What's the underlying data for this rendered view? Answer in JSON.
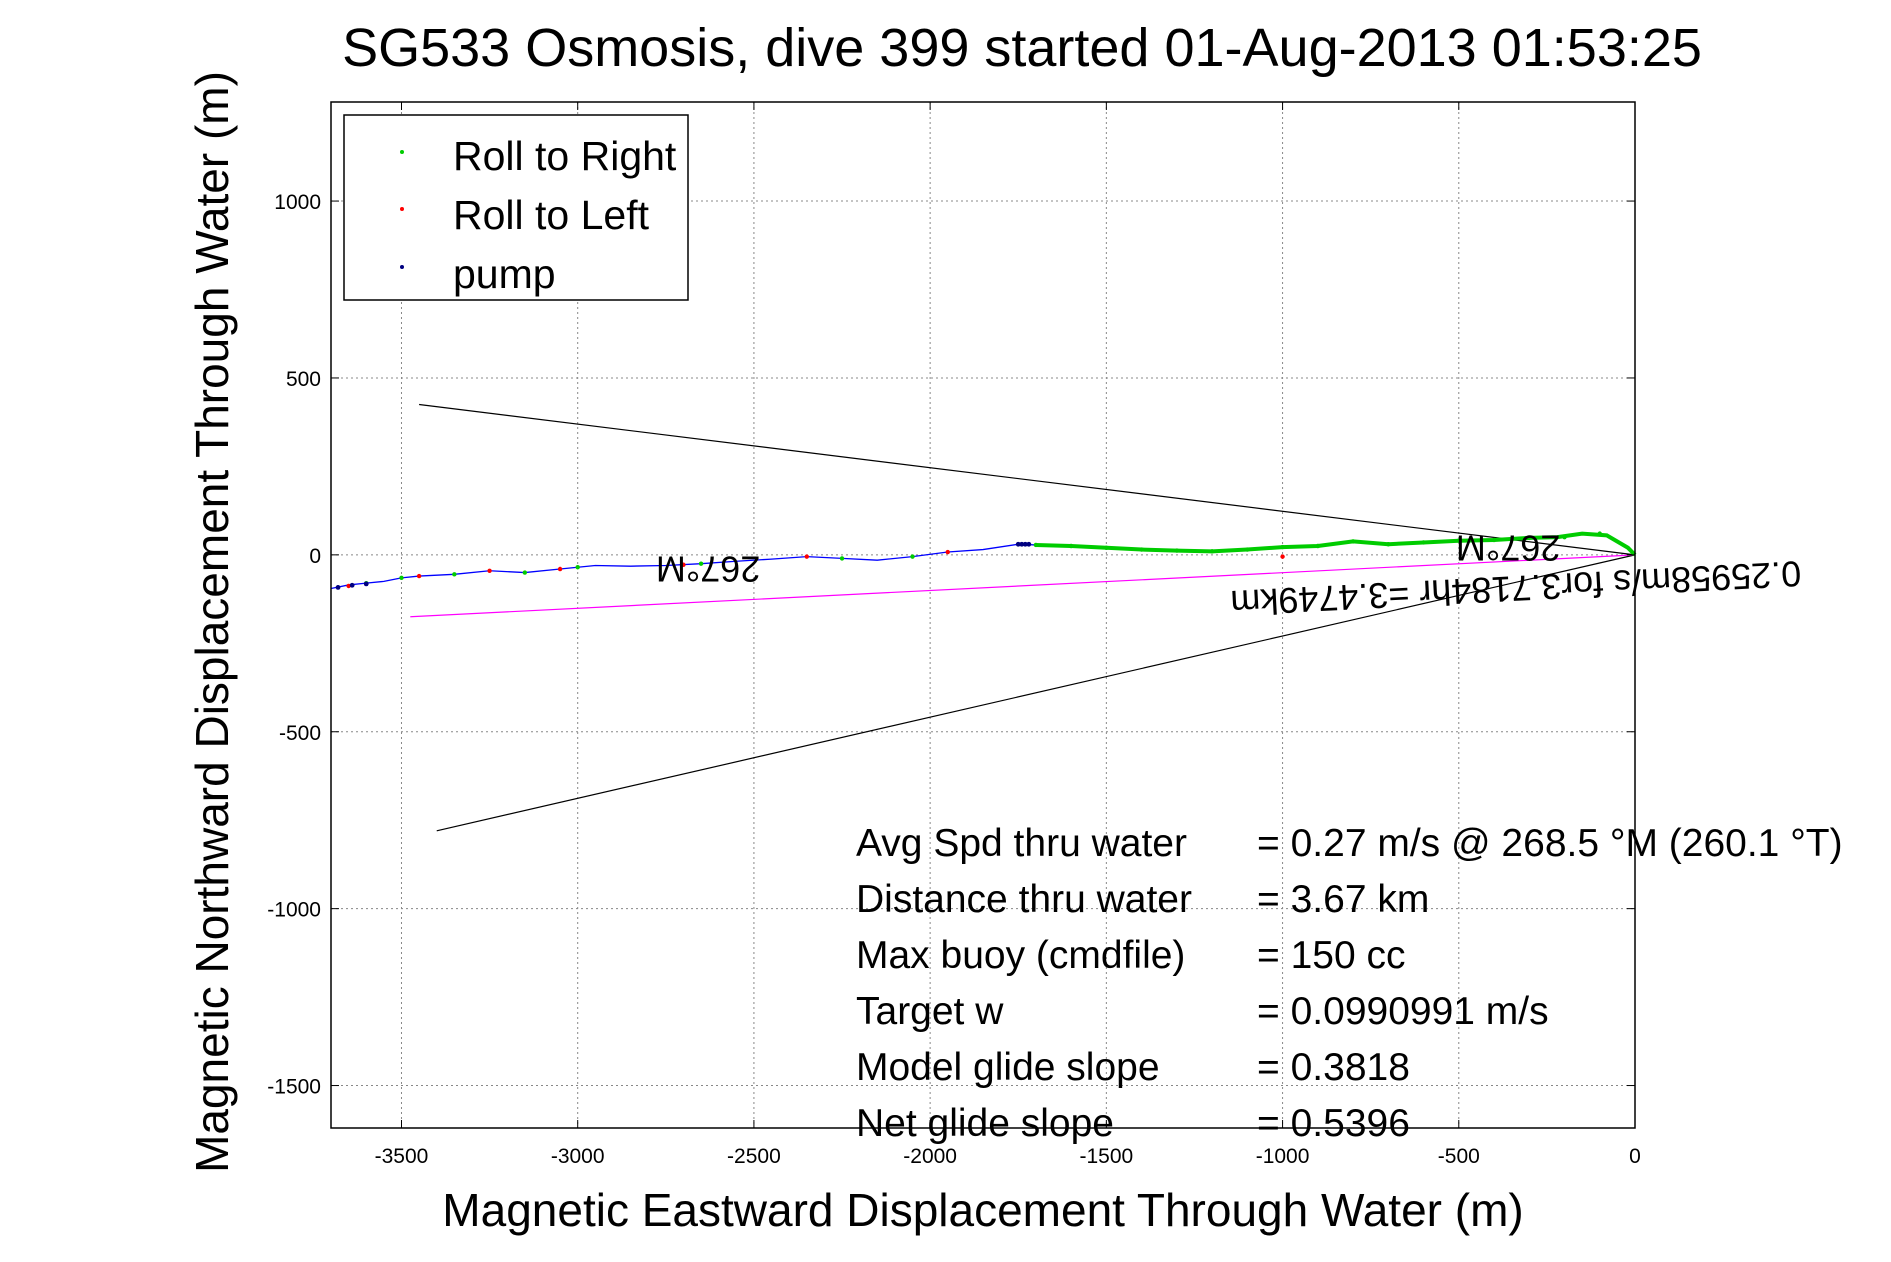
{
  "chart_data": {
    "type": "line",
    "title": "SG533 Osmosis, dive 399 started 01-Aug-2013 01:53:25",
    "xlabel": "Magnetic Eastward Displacement Through Water (m)",
    "ylabel": "Magnetic Northward Displacement Through Water (m)",
    "xlim": [
      -3700,
      0
    ],
    "ylim": [
      -1620,
      1280
    ],
    "xticks": [
      -3500,
      -3000,
      -2500,
      -2000,
      -1500,
      -1000,
      -500,
      0
    ],
    "yticks": [
      1000,
      500,
      0,
      -500,
      -1000,
      -1500
    ],
    "grid": true,
    "legend_placement": "top-left",
    "legend": [
      {
        "label": "Roll to Right",
        "color": "#00cc00"
      },
      {
        "label": "Roll to Left",
        "color": "#ff0000"
      },
      {
        "label": "pump",
        "color": "#000080"
      }
    ],
    "series": [
      {
        "name": "track",
        "color": "#0000ff",
        "x": [
          0,
          -20,
          -80,
          -150,
          -220,
          -300,
          -400,
          -500,
          -600,
          -700,
          -800,
          -900,
          -1000,
          -1100,
          -1200,
          -1300,
          -1400,
          -1500,
          -1600,
          -1700,
          -1750,
          -1850,
          -1950,
          -2050,
          -2150,
          -2250,
          -2350,
          -2450,
          -2550,
          -2650,
          -2750,
          -2850,
          -2950,
          -3050,
          -3150,
          -3250,
          -3350,
          -3450,
          -3500,
          -3550,
          -3600,
          -3650,
          -3700
        ],
        "y": [
          0,
          20,
          55,
          60,
          50,
          48,
          42,
          40,
          35,
          30,
          38,
          25,
          22,
          15,
          10,
          12,
          15,
          20,
          25,
          28,
          30,
          15,
          8,
          -5,
          -15,
          -10,
          -5,
          -12,
          -18,
          -25,
          -30,
          -32,
          -30,
          -40,
          -50,
          -45,
          -55,
          -60,
          -65,
          -75,
          -80,
          -85,
          -95
        ]
      }
    ],
    "roll_right_points": {
      "x": [
        -1700,
        -1600,
        -1500,
        -1400,
        -1300,
        -1200,
        -1100,
        -1000,
        -900,
        -800,
        -700,
        -600,
        -500,
        -400,
        -300,
        -200,
        -100,
        -2250,
        -2050,
        -2650,
        -3000,
        -3150,
        -3350,
        -3500,
        -3600
      ],
      "y": [
        28,
        25,
        20,
        15,
        12,
        10,
        15,
        22,
        25,
        38,
        30,
        35,
        40,
        42,
        48,
        50,
        60,
        -10,
        -5,
        -25,
        -35,
        -50,
        -55,
        -65,
        -80
      ]
    },
    "roll_left_points": {
      "x": [
        -1000,
        -1950,
        -2350,
        -2700,
        -3050,
        -3250,
        -3450,
        -3650
      ],
      "y": [
        -5,
        8,
        -5,
        -28,
        -40,
        -45,
        -60,
        -88
      ]
    },
    "pump_points": {
      "x": [
        -1750,
        -1740,
        -1730,
        -1720,
        -3680,
        -3640,
        -3600
      ],
      "y": [
        30,
        30,
        30,
        30,
        -92,
        -86,
        -82
      ]
    },
    "reference_lines": [
      {
        "color": "#000000",
        "x": [
          0,
          -3450
        ],
        "y": [
          0,
          425
        ]
      },
      {
        "color": "#000000",
        "x": [
          0,
          -3400
        ],
        "y": [
          0,
          -780
        ]
      },
      {
        "color": "#ff00ff",
        "x": [
          0,
          -3475
        ],
        "y": [
          0,
          -175
        ]
      }
    ],
    "annotations": [
      {
        "text": "267°M",
        "x": -2630,
        "y": -5,
        "rotation": 180
      },
      {
        "text": "267°M",
        "x": -360,
        "y": 55,
        "rotation": 180
      },
      {
        "text": "0.25958m/s for3.7184hr =3.4749km",
        "x": -340,
        "y": -60,
        "rotation": 177
      }
    ],
    "stats": [
      {
        "label": "Avg Spd thru water",
        "value": "=  0.27 m/s @ 268.5 °M (260.1 °T)"
      },
      {
        "label": "Distance thru water",
        "value": "=  3.67 km"
      },
      {
        "label": "Max buoy (cmdfile)",
        "value": "= 150 cc"
      },
      {
        "label": "Target w",
        "value": "= 0.0990991 m/s"
      },
      {
        "label": "Model glide slope",
        "value": "= 0.3818"
      },
      {
        "label": "Net glide slope",
        "value": "= 0.5396"
      }
    ]
  }
}
